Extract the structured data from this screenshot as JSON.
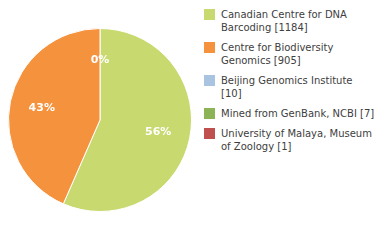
{
  "chart_data": {
    "type": "pie",
    "categories": [
      "Canadian Centre for DNA\nBarcoding [1184]",
      "Centre for Biodiversity\nGenomics [905]",
      "Beijing Genomics Institute [10]",
      "Mined from GenBank, NCBI [7]",
      "University of Malaya, Museum\nof Zoology [1]"
    ],
    "values": [
      56,
      43,
      0,
      0,
      0
    ],
    "value_labels": [
      "56%",
      "43%",
      "0%",
      null,
      null
    ],
    "colors": [
      "#c8d96f",
      "#f5923e",
      "#a8c4e0",
      "#8cb356",
      "#c0504d"
    ],
    "data_labels": true,
    "legend": "right"
  }
}
